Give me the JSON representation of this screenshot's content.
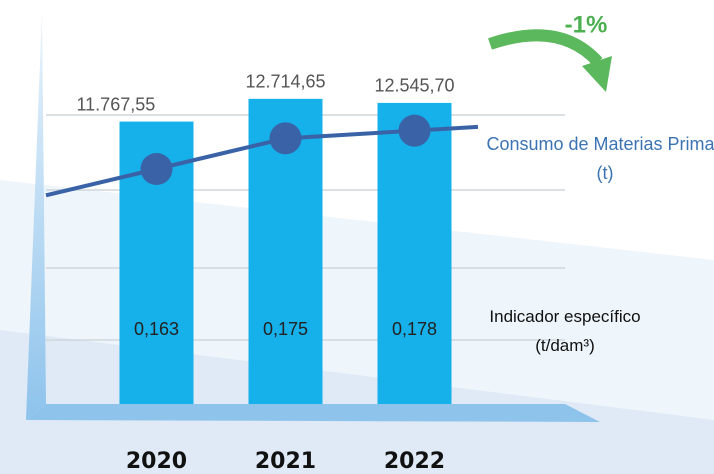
{
  "chart_data": {
    "type": "bar",
    "categories": [
      "2020",
      "2021",
      "2022"
    ],
    "series": [
      {
        "name": "Consumo de Materias Primas (t)",
        "type": "bar",
        "color": "#16b0ea",
        "values": [
          11767.55,
          12714.65,
          12545.7
        ],
        "value_labels": [
          "11.767,55",
          "12.714,65",
          "12.545,70"
        ]
      },
      {
        "name": "Indicador específico (t/dam³)",
        "type": "line",
        "axis": "y2",
        "color": "#3a62a6",
        "values": [
          0.163,
          0.175,
          0.178
        ],
        "value_labels": [
          "0,163",
          "0,175",
          "0,178"
        ]
      }
    ],
    "annotation": "-1%",
    "ylim": [
      0,
      15000
    ],
    "y2lim": [
      0.1,
      0.19
    ]
  }
}
